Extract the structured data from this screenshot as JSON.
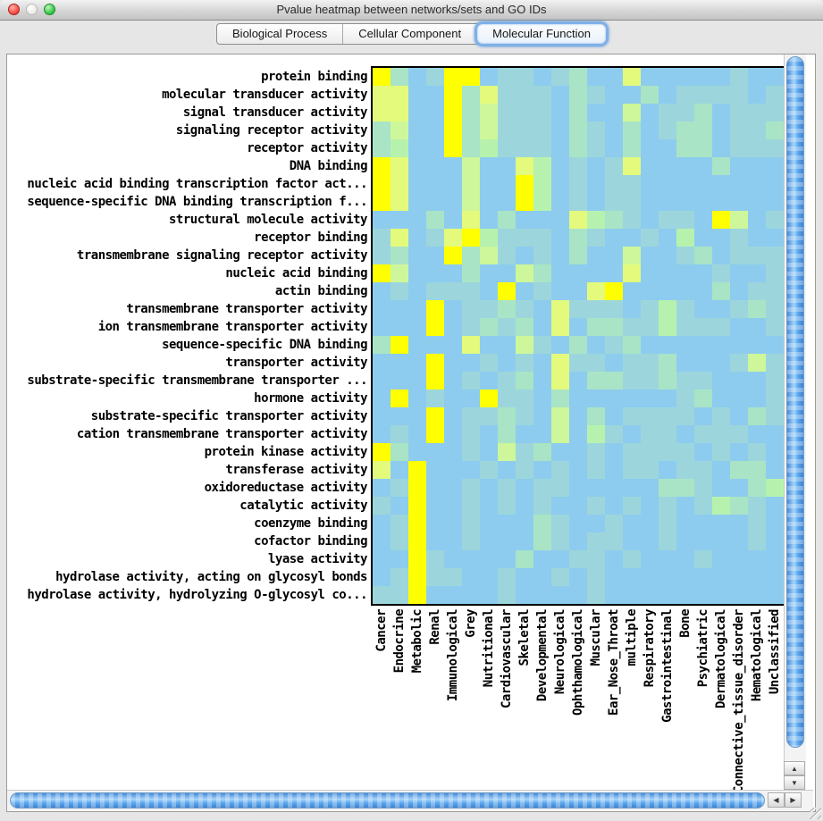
{
  "window": {
    "title": "Pvalue heatmap between networks/sets and GO IDs"
  },
  "tabs": [
    {
      "label": "Biological Process",
      "selected": false
    },
    {
      "label": "Cellular Component",
      "selected": false
    },
    {
      "label": "Molecular Function",
      "selected": true
    }
  ],
  "icons": {
    "scroll_up": "▲",
    "scroll_down": "▼",
    "scroll_left": "◀",
    "scroll_right": "▶"
  },
  "colors": {
    "cell_base_blue": "#8DCCEE",
    "cell_max_yellow": "#FFFF00",
    "selected_tab_ring": "#7FB0E6",
    "scrollbar_thumb_blue": "#5AA6EF"
  },
  "chart_data": {
    "type": "heatmap",
    "title": "Pvalue heatmap between networks/sets and GO IDs",
    "rows": [
      "protein binding",
      "molecular transducer activity",
      "signal transducer activity",
      "signaling receptor activity",
      "receptor activity",
      "DNA binding",
      "nucleic acid binding transcription factor act...",
      "sequence-specific DNA binding transcription f...",
      "structural molecule activity",
      "receptor binding",
      "transmembrane signaling receptor activity",
      "nucleic acid binding",
      "actin binding",
      "transmembrane transporter activity",
      "ion transmembrane transporter activity",
      "sequence-specific DNA binding",
      "transporter activity",
      "substrate-specific transmembrane transporter ...",
      "hormone activity",
      "substrate-specific transporter activity",
      "cation transmembrane transporter activity",
      "protein kinase activity",
      "transferase activity",
      "oxidoreductase activity",
      "catalytic activity",
      "coenzyme binding",
      "cofactor binding",
      "lyase activity",
      "hydrolase activity, acting on glycosyl bonds",
      "hydrolase activity, hydrolyzing O-glycosyl co..."
    ],
    "columns": [
      "Cancer",
      "Endocrine",
      "Metabolic",
      "Renal",
      "Immunological",
      "Grey",
      "Nutritional",
      "Cardiovascular",
      "Skeletal",
      "Developmental",
      "Neurological",
      "Ophthamological",
      "Muscular",
      "Ear_Nose_Throat",
      "multiple",
      "Respiratory",
      "Gastrointestinal",
      "Bone",
      "Psychiatric",
      "Dermatological",
      "Connective_tissue_disorder",
      "Hematological",
      "Unclassified"
    ],
    "palette": {
      "0": "#8DCCEE",
      "1": "#9CD6DC",
      "2": "#A9E4C6",
      "3": "#B6F2AE",
      "4": "#CDF79A",
      "5": "#E3FA7C",
      "6": "#FFFF00"
    },
    "cells": [
      "62016601101200500000100",
      "55006251110210020111101",
      "55006241110200401120111",
      "24006241110210201220112",
      "23006231110210200220111",
      "65000400530101500002000",
      "65000400630101100000000",
      "65000400630101100000000",
      "00020502000532101106401",
      "15015631110210010300100",
      "12006241010200400120111",
      "64000200420000500001001",
      "01011106010056000002011",
      "00060112105111013100121",
      "00060121205022113111001",
      "26000500410201200000000",
      "00060010105110112000141",
      "00060101205022112110001",
      "06010061102000000120001",
      "00060112104020111101021",
      "01060102004031011011100",
      "62000104120010111101010",
      "50600010101010110110220",
      "01600101011000002210023",
      "10600101010010101013210",
      "01600100021001001000010",
      "01600100021011001000010",
      "00610000200110100010000",
      "01611001001010000000000",
      "11600001000010000000000"
    ]
  }
}
